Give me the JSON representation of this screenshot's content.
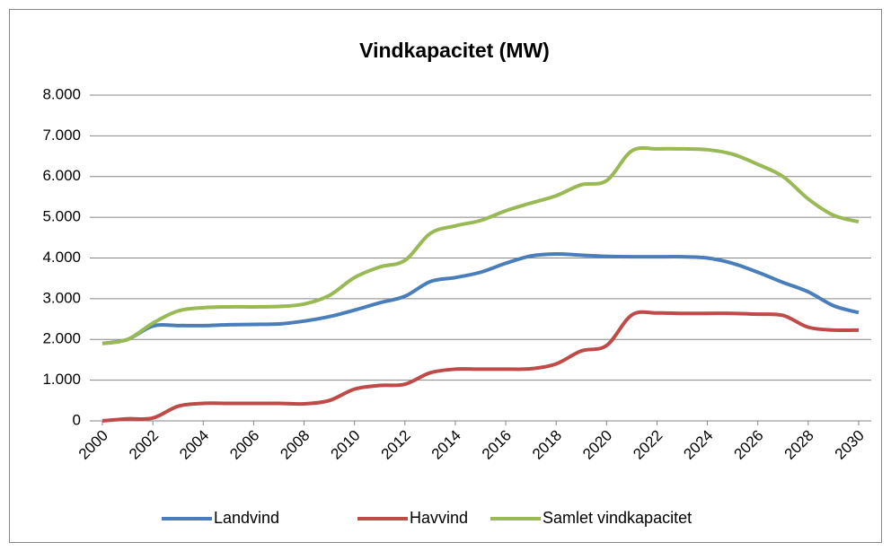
{
  "chart_data": {
    "type": "line",
    "title": "Vindkapacitet (MW)",
    "x": [
      2000,
      2001,
      2002,
      2003,
      2004,
      2005,
      2006,
      2007,
      2008,
      2009,
      2010,
      2011,
      2012,
      2013,
      2014,
      2015,
      2016,
      2017,
      2018,
      2019,
      2020,
      2021,
      2022,
      2023,
      2024,
      2025,
      2026,
      2027,
      2028,
      2029,
      2030
    ],
    "xlim": [
      1999.5,
      2030.5
    ],
    "xticks": [
      2000,
      2002,
      2004,
      2006,
      2008,
      2010,
      2012,
      2014,
      2016,
      2018,
      2020,
      2022,
      2024,
      2026,
      2028,
      2030
    ],
    "ylim": [
      0,
      8000
    ],
    "yticks": [
      0,
      {
        "value": 1000,
        "label": "1.000"
      },
      {
        "value": 2000,
        "label": "2.000"
      },
      {
        "value": 3000,
        "label": "3.000"
      },
      {
        "value": 4000,
        "label": "4.000"
      },
      {
        "value": 5000,
        "label": "5.000"
      },
      {
        "value": 6000,
        "label": "6.000"
      },
      {
        "value": 7000,
        "label": "7.000"
      },
      {
        "value": 8000,
        "label": "8.000"
      }
    ],
    "grid": true,
    "legend": "bottom",
    "series": [
      {
        "name": "Landvind",
        "color": "#4a7ebb",
        "values": [
          1900,
          2000,
          2330,
          2340,
          2340,
          2360,
          2370,
          2380,
          2450,
          2560,
          2720,
          2900,
          3060,
          3420,
          3520,
          3650,
          3870,
          4050,
          4100,
          4070,
          4040,
          4030,
          4030,
          4030,
          4000,
          3870,
          3650,
          3400,
          3170,
          2830,
          2660
        ]
      },
      {
        "name": "Havvind",
        "color": "#be4b48",
        "values": [
          0,
          50,
          70,
          360,
          430,
          430,
          430,
          430,
          420,
          500,
          780,
          870,
          900,
          1180,
          1270,
          1270,
          1270,
          1280,
          1400,
          1720,
          1850,
          2600,
          2650,
          2640,
          2640,
          2640,
          2620,
          2590,
          2300,
          2230,
          2230
        ]
      },
      {
        "name": "Samlet vindkapacitet",
        "color": "#98b954",
        "values": [
          1900,
          2000,
          2400,
          2700,
          2780,
          2800,
          2800,
          2810,
          2870,
          3080,
          3520,
          3780,
          3940,
          4600,
          4790,
          4920,
          5160,
          5350,
          5530,
          5800,
          5900,
          6630,
          6680,
          6680,
          6660,
          6550,
          6300,
          6000,
          5450,
          5050,
          4890
        ]
      }
    ]
  }
}
